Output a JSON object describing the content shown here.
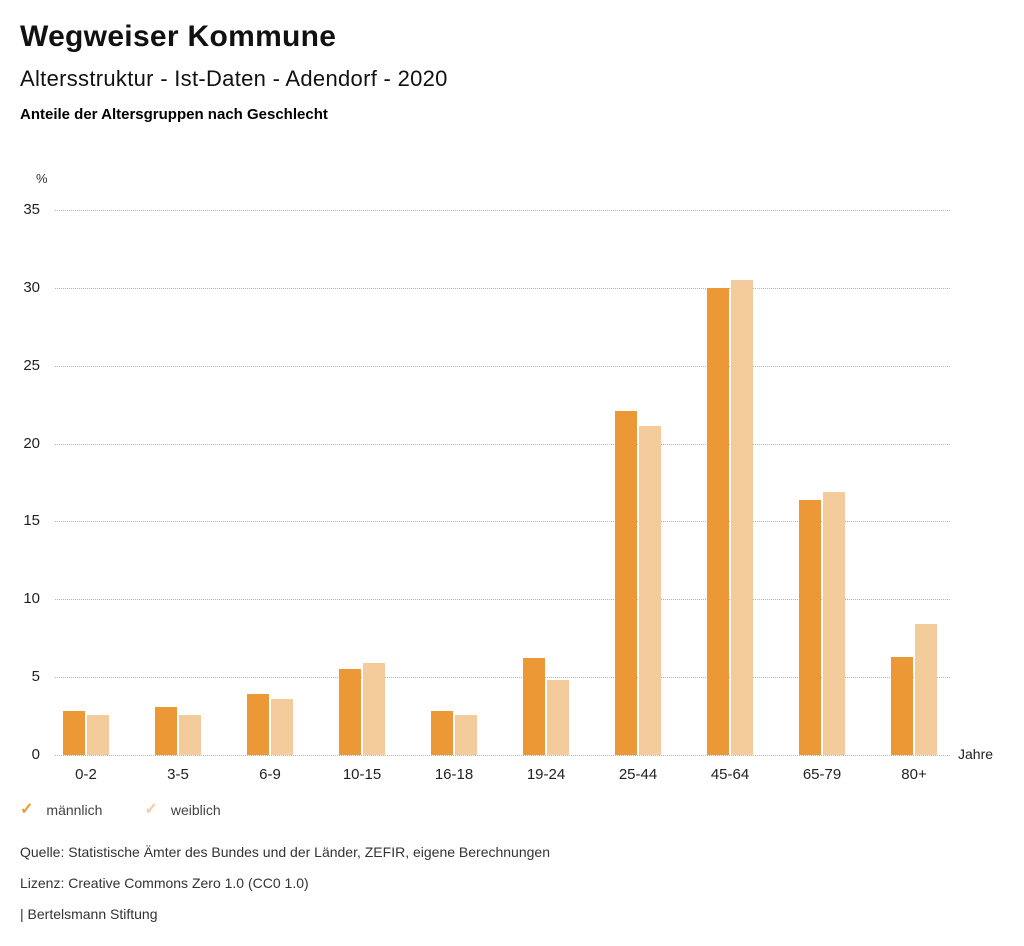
{
  "header": {
    "title": "Wegweiser Kommune",
    "subtitle": "Altersstruktur - Ist-Daten - Adendorf - 2020",
    "description": "Anteile der Altersgruppen nach Geschlecht"
  },
  "chart_data": {
    "type": "bar",
    "title": "Anteile der Altersgruppen nach Geschlecht",
    "unit_label": "%",
    "x_unit_label": "Jahre",
    "categories": [
      "0-2",
      "3-5",
      "6-9",
      "10-15",
      "16-18",
      "19-24",
      "25-44",
      "45-64",
      "65-79",
      "80+"
    ],
    "series": [
      {
        "name": "männlich",
        "color": "#ED9836",
        "values": [
          2.8,
          3.1,
          3.9,
          5.5,
          2.8,
          6.2,
          22.1,
          30.0,
          16.4,
          6.3
        ]
      },
      {
        "name": "weiblich",
        "color": "#F4CB9B",
        "values": [
          2.6,
          2.6,
          3.6,
          5.9,
          2.6,
          4.8,
          21.1,
          30.5,
          16.9,
          8.4
        ]
      }
    ],
    "ylim": [
      0,
      35
    ],
    "ytick_step": 5,
    "yticks": [
      0,
      5,
      10,
      15,
      20,
      25,
      30,
      35
    ],
    "grid": "horizontal dotted",
    "legend_position": "bottom-left"
  },
  "legend": {
    "items": [
      {
        "label": "männlich",
        "color": "#ED9836",
        "icon": "check-icon"
      },
      {
        "label": "weiblich",
        "color": "#F4CB9B",
        "icon": "check-icon"
      }
    ],
    "check_glyph": "✓"
  },
  "footer": {
    "source": "Quelle: Statistische Ämter des Bundes und der Länder, ZEFIR, eigene Berechnungen",
    "license": "Lizenz: Creative Commons Zero 1.0 (CC0 1.0)",
    "attribution": "| Bertelsmann Stiftung"
  }
}
